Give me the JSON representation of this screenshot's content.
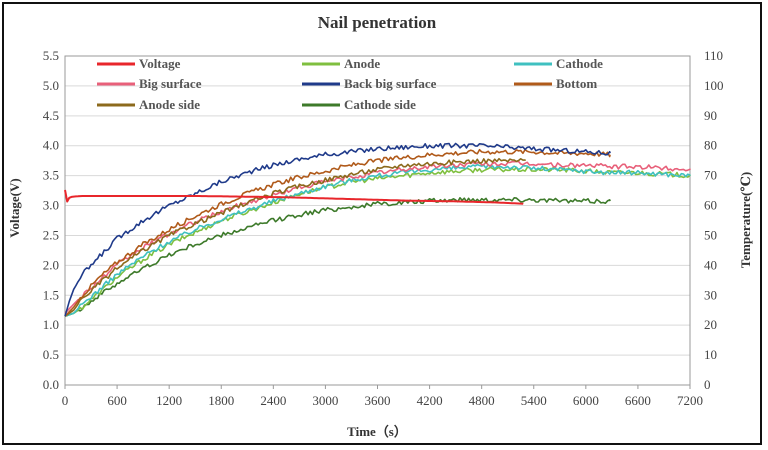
{
  "chart_data": {
    "type": "line",
    "title": "Nail penetration",
    "xlabel": "Time（s）",
    "ylabel_left": "Voltage(V)",
    "ylabel_right": "Temperature(℃)",
    "xlim": [
      0,
      7200
    ],
    "ylim_left": [
      0.0,
      5.5
    ],
    "ylim_right": [
      0,
      110
    ],
    "x_ticks": [
      "0",
      "600",
      "1200",
      "1800",
      "2400",
      "3000",
      "3600",
      "4200",
      "4800",
      "5400",
      "6000",
      "6600",
      "7200"
    ],
    "y_left_ticks": [
      "0.0",
      "0.5",
      "1.0",
      "1.5",
      "2.0",
      "2.5",
      "3.0",
      "3.5",
      "4.0",
      "4.5",
      "5.0",
      "5.5"
    ],
    "y_right_ticks": [
      "0",
      "10",
      "20",
      "30",
      "40",
      "50",
      "60",
      "70",
      "80",
      "90",
      "100",
      "110"
    ],
    "grid": "horizontal",
    "legend_placement": "top",
    "series": [
      {
        "name": "Voltage",
        "axis": "left",
        "color": "#e8262b",
        "x": [
          0,
          20,
          40,
          60,
          100,
          200,
          400,
          600,
          1000,
          1500,
          2000,
          2500,
          3000,
          3500,
          4000,
          4500,
          5000,
          5280
        ],
        "y": [
          3.26,
          3.05,
          3.12,
          3.14,
          3.15,
          3.16,
          3.16,
          3.16,
          3.16,
          3.16,
          3.15,
          3.14,
          3.12,
          3.1,
          3.08,
          3.07,
          3.05,
          3.03
        ]
      },
      {
        "name": "Anode",
        "axis": "right",
        "color": "#7fbf3f",
        "x": [
          0,
          100,
          200,
          400,
          600,
          900,
          1200,
          1500,
          1800,
          2100,
          2400,
          2700,
          3000,
          3300,
          3600,
          3900,
          4200,
          4500,
          4800,
          5100,
          5400,
          5700,
          6000,
          6300,
          6600,
          6900,
          7200
        ],
        "y": [
          23,
          24,
          26,
          31,
          36,
          42,
          47,
          51,
          55,
          58,
          61,
          64,
          66,
          68,
          69,
          70,
          71,
          71.5,
          72,
          72,
          72,
          72,
          71.5,
          71,
          71,
          70.5,
          70
        ]
      },
      {
        "name": "Cathode",
        "axis": "right",
        "color": "#3fc0c0",
        "x": [
          0,
          100,
          200,
          400,
          600,
          900,
          1200,
          1500,
          1800,
          2100,
          2400,
          2700,
          3000,
          3300,
          3600,
          3900,
          4200,
          4500,
          4800,
          5100,
          5400,
          5700,
          6000,
          6300,
          6600,
          6900,
          7200
        ],
        "y": [
          23,
          24,
          27,
          32,
          37,
          43,
          48,
          52,
          55.5,
          58.5,
          61.5,
          64,
          66.5,
          68.5,
          70,
          71,
          72,
          72.5,
          73,
          73,
          72.5,
          72,
          71.5,
          71,
          71,
          70.5,
          70
        ]
      },
      {
        "name": "Big surface",
        "axis": "right",
        "color": "#e8607a",
        "x": [
          0,
          100,
          200,
          400,
          600,
          900,
          1200,
          1500,
          1800,
          2100,
          2400,
          2700,
          3000,
          3300,
          3600,
          3900,
          4200,
          4500,
          4800,
          5100,
          5400,
          5700,
          6000,
          6300,
          6600,
          6900,
          7200
        ],
        "y": [
          24,
          27,
          30,
          35,
          40,
          46,
          50.5,
          54.5,
          58,
          61,
          63.5,
          66,
          68,
          69.5,
          71,
          72,
          73,
          73.5,
          74,
          74,
          74,
          73.5,
          73.5,
          73,
          73,
          72.5,
          72
        ]
      },
      {
        "name": "Back big surface",
        "axis": "right",
        "color": "#1f3a8a",
        "x": [
          0,
          50,
          100,
          200,
          400,
          600,
          900,
          1200,
          1500,
          1800,
          2100,
          2400,
          2700,
          3000,
          3300,
          3600,
          3900,
          4200,
          4500,
          4800,
          5100,
          5400,
          5700,
          6000,
          6280
        ],
        "y": [
          23,
          28,
          32,
          37,
          43,
          49,
          55,
          60,
          64,
          68,
          71,
          73.5,
          75.5,
          77,
          78,
          79,
          79.5,
          80,
          80,
          80,
          79.5,
          79,
          78.5,
          78,
          77.5
        ]
      },
      {
        "name": "Bottom",
        "axis": "right",
        "color": "#b05a1a",
        "x": [
          0,
          100,
          200,
          400,
          600,
          900,
          1200,
          1500,
          1800,
          2100,
          2400,
          2700,
          3000,
          3300,
          3600,
          3900,
          4200,
          4500,
          4800,
          5100,
          5400,
          5700,
          6000,
          6280
        ],
        "y": [
          23,
          26,
          30,
          36,
          41,
          47,
          52,
          56.5,
          60.5,
          64,
          67,
          69.5,
          71.5,
          73.5,
          75,
          76,
          77,
          77.5,
          78,
          78,
          78,
          77.5,
          77.5,
          77
        ]
      },
      {
        "name": "Anode side",
        "axis": "right",
        "color": "#8c6a1c",
        "x": [
          0,
          100,
          200,
          400,
          600,
          900,
          1200,
          1500,
          1800,
          2100,
          2400,
          2700,
          3000,
          3300,
          3600,
          3900,
          4200,
          4500,
          4800,
          5100,
          5300
        ],
        "y": [
          23,
          25,
          29,
          34,
          39,
          45,
          50,
          54,
          57.5,
          61,
          64,
          66.5,
          68.5,
          70.5,
          72,
          73.5,
          74,
          74.5,
          75,
          75,
          75
        ]
      },
      {
        "name": "Cathode side",
        "axis": "right",
        "color": "#3d7a2a",
        "x": [
          0,
          100,
          200,
          400,
          600,
          900,
          1200,
          1500,
          1800,
          2100,
          2400,
          2700,
          3000,
          3300,
          3600,
          3900,
          4200,
          4500,
          4800,
          5100,
          5400,
          5700,
          6000,
          6280
        ],
        "y": [
          23,
          24,
          26,
          30,
          34,
          39,
          43.5,
          47,
          50,
          52.5,
          55,
          57,
          58.5,
          59.5,
          60.5,
          61,
          61.5,
          62,
          62,
          62,
          62,
          61.5,
          61.5,
          61.5
        ]
      }
    ]
  }
}
